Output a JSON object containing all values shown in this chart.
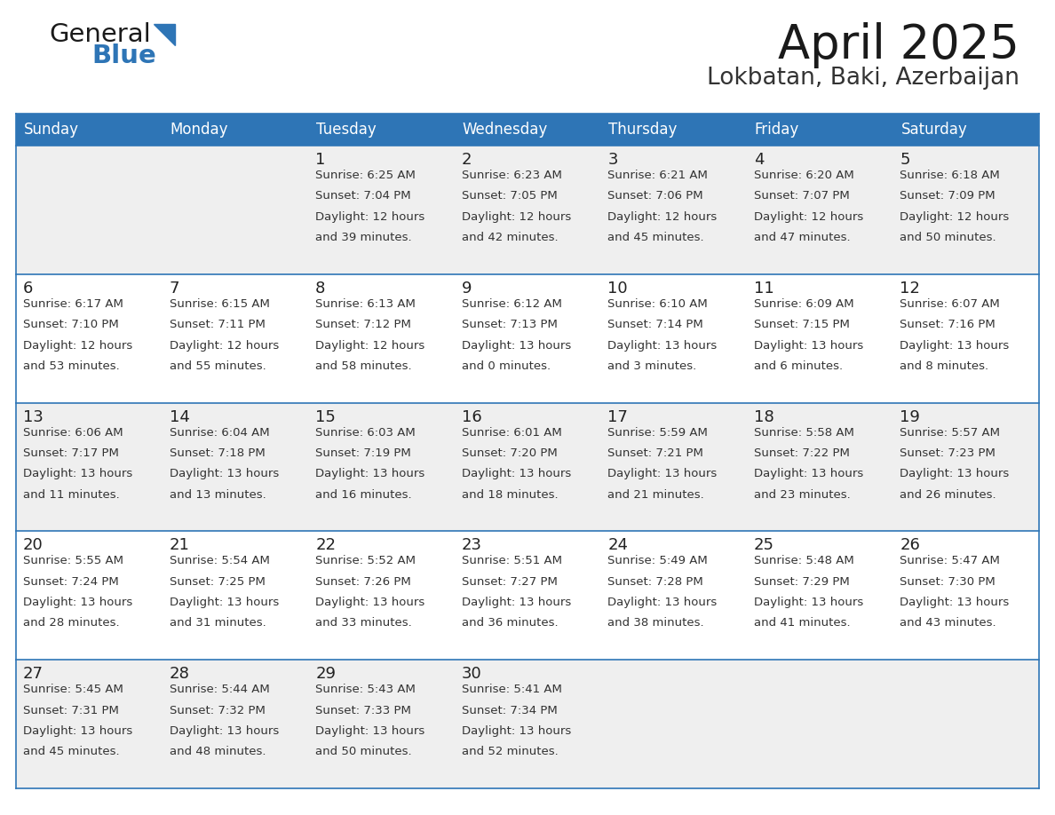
{
  "title": "April 2025",
  "subtitle": "Lokbatan, Baki, Azerbaijan",
  "days_of_week": [
    "Sunday",
    "Monday",
    "Tuesday",
    "Wednesday",
    "Thursday",
    "Friday",
    "Saturday"
  ],
  "header_bg": "#2E75B6",
  "header_text_color": "#FFFFFF",
  "row_bg_light": "#EFEFEF",
  "row_bg_white": "#FFFFFF",
  "cell_border_color": "#2E75B6",
  "text_color": "#222222",
  "sub_text_color": "#333333",
  "calendar": [
    [
      {
        "day": "",
        "sunrise": "",
        "sunset": "",
        "daylight": ""
      },
      {
        "day": "",
        "sunrise": "",
        "sunset": "",
        "daylight": ""
      },
      {
        "day": "1",
        "sunrise": "6:25 AM",
        "sunset": "7:04 PM",
        "daylight": "12 hours and 39 minutes."
      },
      {
        "day": "2",
        "sunrise": "6:23 AM",
        "sunset": "7:05 PM",
        "daylight": "12 hours and 42 minutes."
      },
      {
        "day": "3",
        "sunrise": "6:21 AM",
        "sunset": "7:06 PM",
        "daylight": "12 hours and 45 minutes."
      },
      {
        "day": "4",
        "sunrise": "6:20 AM",
        "sunset": "7:07 PM",
        "daylight": "12 hours and 47 minutes."
      },
      {
        "day": "5",
        "sunrise": "6:18 AM",
        "sunset": "7:09 PM",
        "daylight": "12 hours and 50 minutes."
      }
    ],
    [
      {
        "day": "6",
        "sunrise": "6:17 AM",
        "sunset": "7:10 PM",
        "daylight": "12 hours and 53 minutes."
      },
      {
        "day": "7",
        "sunrise": "6:15 AM",
        "sunset": "7:11 PM",
        "daylight": "12 hours and 55 minutes."
      },
      {
        "day": "8",
        "sunrise": "6:13 AM",
        "sunset": "7:12 PM",
        "daylight": "12 hours and 58 minutes."
      },
      {
        "day": "9",
        "sunrise": "6:12 AM",
        "sunset": "7:13 PM",
        "daylight": "13 hours and 0 minutes."
      },
      {
        "day": "10",
        "sunrise": "6:10 AM",
        "sunset": "7:14 PM",
        "daylight": "13 hours and 3 minutes."
      },
      {
        "day": "11",
        "sunrise": "6:09 AM",
        "sunset": "7:15 PM",
        "daylight": "13 hours and 6 minutes."
      },
      {
        "day": "12",
        "sunrise": "6:07 AM",
        "sunset": "7:16 PM",
        "daylight": "13 hours and 8 minutes."
      }
    ],
    [
      {
        "day": "13",
        "sunrise": "6:06 AM",
        "sunset": "7:17 PM",
        "daylight": "13 hours and 11 minutes."
      },
      {
        "day": "14",
        "sunrise": "6:04 AM",
        "sunset": "7:18 PM",
        "daylight": "13 hours and 13 minutes."
      },
      {
        "day": "15",
        "sunrise": "6:03 AM",
        "sunset": "7:19 PM",
        "daylight": "13 hours and 16 minutes."
      },
      {
        "day": "16",
        "sunrise": "6:01 AM",
        "sunset": "7:20 PM",
        "daylight": "13 hours and 18 minutes."
      },
      {
        "day": "17",
        "sunrise": "5:59 AM",
        "sunset": "7:21 PM",
        "daylight": "13 hours and 21 minutes."
      },
      {
        "day": "18",
        "sunrise": "5:58 AM",
        "sunset": "7:22 PM",
        "daylight": "13 hours and 23 minutes."
      },
      {
        "day": "19",
        "sunrise": "5:57 AM",
        "sunset": "7:23 PM",
        "daylight": "13 hours and 26 minutes."
      }
    ],
    [
      {
        "day": "20",
        "sunrise": "5:55 AM",
        "sunset": "7:24 PM",
        "daylight": "13 hours and 28 minutes."
      },
      {
        "day": "21",
        "sunrise": "5:54 AM",
        "sunset": "7:25 PM",
        "daylight": "13 hours and 31 minutes."
      },
      {
        "day": "22",
        "sunrise": "5:52 AM",
        "sunset": "7:26 PM",
        "daylight": "13 hours and 33 minutes."
      },
      {
        "day": "23",
        "sunrise": "5:51 AM",
        "sunset": "7:27 PM",
        "daylight": "13 hours and 36 minutes."
      },
      {
        "day": "24",
        "sunrise": "5:49 AM",
        "sunset": "7:28 PM",
        "daylight": "13 hours and 38 minutes."
      },
      {
        "day": "25",
        "sunrise": "5:48 AM",
        "sunset": "7:29 PM",
        "daylight": "13 hours and 41 minutes."
      },
      {
        "day": "26",
        "sunrise": "5:47 AM",
        "sunset": "7:30 PM",
        "daylight": "13 hours and 43 minutes."
      }
    ],
    [
      {
        "day": "27",
        "sunrise": "5:45 AM",
        "sunset": "7:31 PM",
        "daylight": "13 hours and 45 minutes."
      },
      {
        "day": "28",
        "sunrise": "5:44 AM",
        "sunset": "7:32 PM",
        "daylight": "13 hours and 48 minutes."
      },
      {
        "day": "29",
        "sunrise": "5:43 AM",
        "sunset": "7:33 PM",
        "daylight": "13 hours and 50 minutes."
      },
      {
        "day": "30",
        "sunrise": "5:41 AM",
        "sunset": "7:34 PM",
        "daylight": "13 hours and 52 minutes."
      },
      {
        "day": "",
        "sunrise": "",
        "sunset": "",
        "daylight": ""
      },
      {
        "day": "",
        "sunrise": "",
        "sunset": "",
        "daylight": ""
      },
      {
        "day": "",
        "sunrise": "",
        "sunset": "",
        "daylight": ""
      }
    ]
  ],
  "logo_text_general": "General",
  "logo_text_blue": "Blue",
  "logo_color_general": "#1a1a1a",
  "logo_color_blue": "#2E75B6",
  "logo_triangle_color": "#2E75B6",
  "title_fontsize": 38,
  "subtitle_fontsize": 19,
  "header_fontsize": 12,
  "day_num_fontsize": 13,
  "cell_text_fontsize": 9.5
}
